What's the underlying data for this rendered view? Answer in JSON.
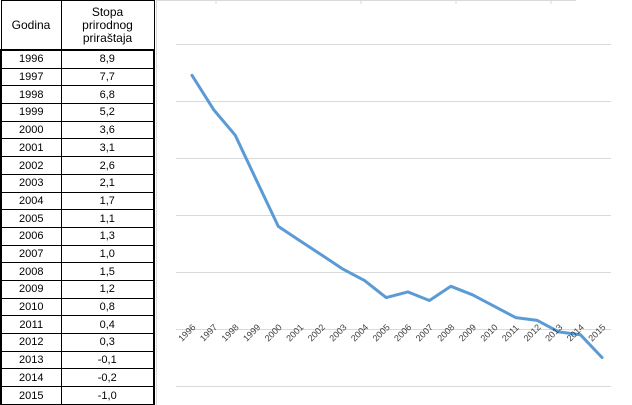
{
  "table": {
    "header_year": "Godina",
    "header_rate": "Stopa prirodnog priraštaja",
    "rows": [
      {
        "year": "1996",
        "value": "8,9"
      },
      {
        "year": "1997",
        "value": "7,7"
      },
      {
        "year": "1998",
        "value": "6,8"
      },
      {
        "year": "1999",
        "value": "5,2"
      },
      {
        "year": "2000",
        "value": "3,6"
      },
      {
        "year": "2001",
        "value": "3,1"
      },
      {
        "year": "2002",
        "value": "2,6"
      },
      {
        "year": "2003",
        "value": "2,1"
      },
      {
        "year": "2004",
        "value": "1,7"
      },
      {
        "year": "2005",
        "value": "1,1"
      },
      {
        "year": "2006",
        "value": "1,3"
      },
      {
        "year": "2007",
        "value": "1,0"
      },
      {
        "year": "2008",
        "value": "1,5"
      },
      {
        "year": "2009",
        "value": "1,2"
      },
      {
        "year": "2010",
        "value": "0,8"
      },
      {
        "year": "2011",
        "value": "0,4"
      },
      {
        "year": "2012",
        "value": "0,3"
      },
      {
        "year": "2013",
        "value": "-0,1"
      },
      {
        "year": "2014",
        "value": "-0,2"
      },
      {
        "year": "2015",
        "value": "-1,0"
      }
    ]
  },
  "chart_data": {
    "type": "line",
    "title": "",
    "xlabel": "",
    "ylabel": "",
    "categories": [
      "1996",
      "1997",
      "1998",
      "1999",
      "2000",
      "2001",
      "2002",
      "2003",
      "2004",
      "2005",
      "2006",
      "2007",
      "2008",
      "2009",
      "2010",
      "2011",
      "2012",
      "2013",
      "2014",
      "2015"
    ],
    "series": [
      {
        "values": [
          8.9,
          7.7,
          6.8,
          5.2,
          3.6,
          3.1,
          2.6,
          2.1,
          1.7,
          1.1,
          1.3,
          1.0,
          1.5,
          1.2,
          0.8,
          0.4,
          0.3,
          -0.1,
          -0.2,
          -1.0
        ],
        "color": "#5b9bd5"
      }
    ],
    "ylim": [
      -2,
      10
    ],
    "gridlines": true,
    "y_tick_labels_visible": false,
    "line_color": "#5b9bd5",
    "grid_color": "#d9d9d9"
  }
}
